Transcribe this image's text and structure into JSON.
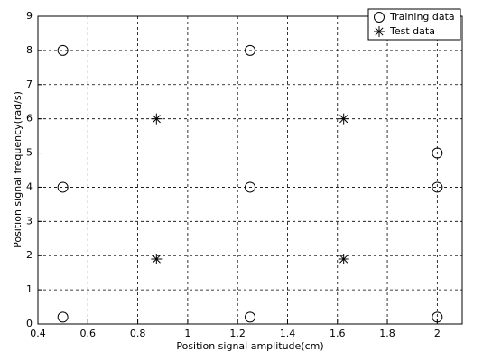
{
  "chart_data": {
    "type": "scatter",
    "xlabel": "Position signal amplitude(cm)",
    "ylabel": "Position signal frequency(rad/s)",
    "xlim": [
      0.4,
      2.1
    ],
    "ylim": [
      0,
      9
    ],
    "xticks": [
      0.4,
      0.6,
      0.8,
      1,
      1.2,
      1.4,
      1.6,
      1.8,
      2
    ],
    "yticks": [
      0,
      1,
      2,
      3,
      4,
      5,
      6,
      7,
      8,
      9
    ],
    "grid": true,
    "legend": "upper right",
    "series": [
      {
        "name": "Training data",
        "color": "#000000",
        "marker": "circle",
        "x": [
          0.5,
          0.5,
          0.5,
          1.25,
          1.25,
          1.25,
          2,
          2,
          2
        ],
        "y": [
          0.2,
          4,
          8,
          0.2,
          4,
          8,
          0.2,
          4,
          5
        ]
      },
      {
        "name": "Test data",
        "color": "#000000",
        "marker": "asterisk",
        "x": [
          0.875,
          0.875,
          1.625,
          1.625
        ],
        "y": [
          1.9,
          6,
          1.9,
          6
        ]
      }
    ]
  }
}
